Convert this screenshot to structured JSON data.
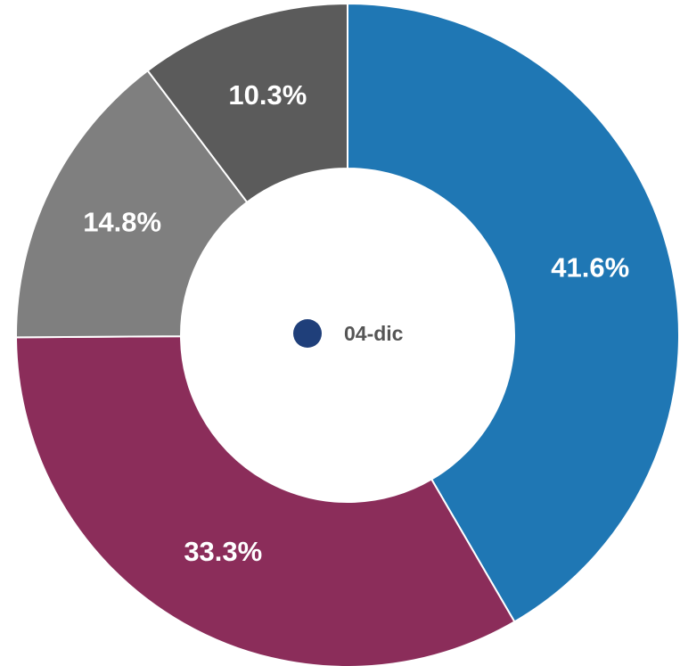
{
  "chart_data": {
    "type": "donut",
    "series": [
      {
        "name": "04-dic",
        "color": "#1f3f7a",
        "values": [
          41.6,
          33.3,
          14.8,
          10.3
        ],
        "value_labels": [
          "41.6%",
          "33.3%",
          "14.8%",
          "10.3%"
        ],
        "colors": [
          "#1f77b4",
          "#8b2d5a",
          "#7f7f7f",
          "#5b5b5b"
        ]
      }
    ]
  }
}
